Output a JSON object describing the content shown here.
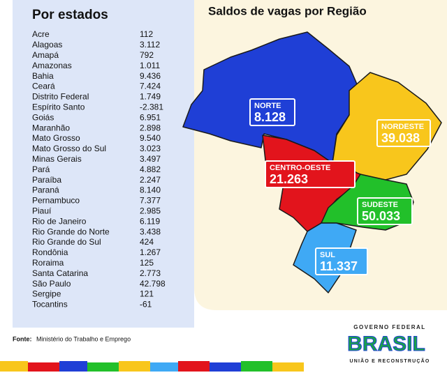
{
  "table": {
    "title": "Por estados",
    "rows": [
      [
        "Acre",
        "112"
      ],
      [
        "Alagoas",
        "3.112"
      ],
      [
        "Amapá",
        "792"
      ],
      [
        "Amazonas",
        "1.011"
      ],
      [
        "Bahia",
        "9.436"
      ],
      [
        "Ceará",
        "7.424"
      ],
      [
        "Distrito Federal",
        "1.749"
      ],
      [
        "Espírito Santo",
        "-2.381"
      ],
      [
        "Goiás",
        "6.951"
      ],
      [
        "Maranhão",
        "2.898"
      ],
      [
        "Mato Grosso",
        "9.540"
      ],
      [
        "Mato Grosso do Sul",
        "3.023"
      ],
      [
        "Minas Gerais",
        "3.497"
      ],
      [
        "Pará",
        "4.882"
      ],
      [
        "Paraíba",
        "2.247"
      ],
      [
        "Paraná",
        "8.140"
      ],
      [
        "Pernambuco",
        "7.377"
      ],
      [
        "Piauí",
        "2.985"
      ],
      [
        "Rio de Janeiro",
        "6.119"
      ],
      [
        "Rio Grande do Norte",
        "3.438"
      ],
      [
        "Rio Grande do Sul",
        "424"
      ],
      [
        "Rondônia",
        "1.267"
      ],
      [
        "Roraima",
        "125"
      ],
      [
        "Santa Catarina",
        "2.773"
      ],
      [
        "São Paulo",
        "42.798"
      ],
      [
        "Sergipe",
        "121"
      ],
      [
        "Tocantins",
        "-61"
      ]
    ]
  },
  "map": {
    "title": "Saldos de vagas por Região",
    "regions": [
      {
        "name": "NORTE",
        "value": "8.128"
      },
      {
        "name": "NORDESTE",
        "value": "39.038"
      },
      {
        "name": "CENTRO-OESTE",
        "value": "21.263"
      },
      {
        "name": "SUDESTE",
        "value": "50.033"
      },
      {
        "name": "SUL",
        "value": "11.337"
      }
    ]
  },
  "source": {
    "label": "Fonte:",
    "text": "Ministério do Trabalho e Emprego"
  },
  "logo": {
    "top": "GOVERNO FEDERAL",
    "main": "BRASIL",
    "bottom": "UNIÃO E RECONSTRUÇÃO"
  }
}
